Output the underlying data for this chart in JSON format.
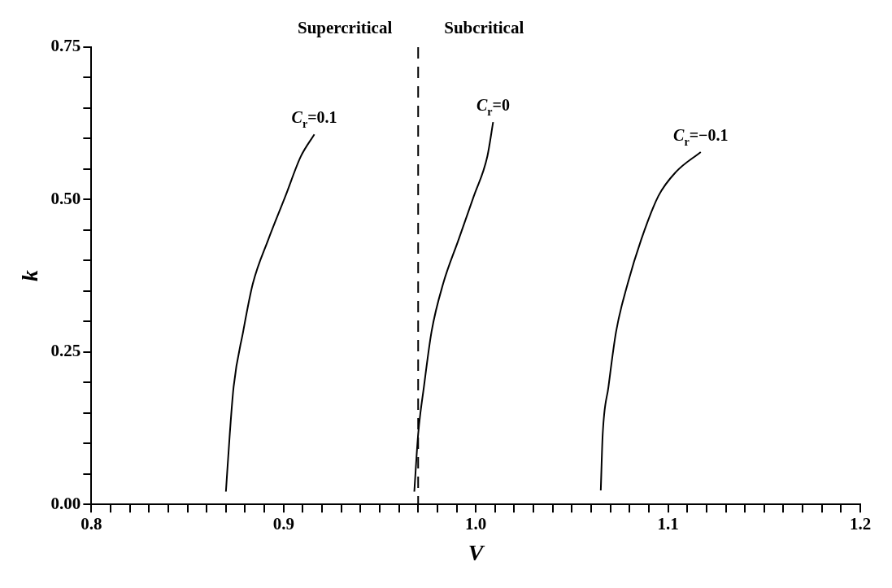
{
  "chart_data": {
    "type": "line",
    "xlabel": "V",
    "ylabel": "k",
    "annotations": [
      "Supercritical",
      "Subcritical"
    ],
    "xlim": [
      0.8,
      1.2
    ],
    "ylim": [
      0,
      0.75
    ],
    "xticks": [
      0.8,
      {
        "value": 0.81,
        "label": null
      },
      {
        "value": 0.82,
        "label": null
      },
      {
        "value": 0.83,
        "label": null
      },
      {
        "value": 0.84,
        "label": null
      },
      {
        "value": 0.85,
        "label": null
      },
      {
        "value": 0.86,
        "label": null
      },
      {
        "value": 0.87,
        "label": null
      },
      {
        "value": 0.88,
        "label": null
      },
      {
        "value": 0.89,
        "label": null
      },
      0.9,
      {
        "value": 0.91,
        "label": null
      },
      {
        "value": 0.92,
        "label": null
      },
      {
        "value": 0.93,
        "label": null
      },
      {
        "value": 0.94,
        "label": null
      },
      {
        "value": 0.95,
        "label": null
      },
      {
        "value": 0.96,
        "label": null
      },
      {
        "value": 0.97,
        "label": null
      },
      {
        "value": 0.98,
        "label": null
      },
      {
        "value": 0.99,
        "label": null
      },
      {
        "value": 1.0,
        "label": "1.0"
      },
      {
        "value": 1.01,
        "label": null
      },
      {
        "value": 1.02,
        "label": null
      },
      {
        "value": 1.03,
        "label": null
      },
      {
        "value": 1.04,
        "label": null
      },
      {
        "value": 1.05,
        "label": null
      },
      {
        "value": 1.06,
        "label": null
      },
      {
        "value": 1.07,
        "label": null
      },
      {
        "value": 1.08,
        "label": null
      },
      {
        "value": 1.09,
        "label": null
      },
      1.1,
      {
        "value": 1.11,
        "label": null
      },
      {
        "value": 1.12,
        "label": null
      },
      {
        "value": 1.13,
        "label": null
      },
      {
        "value": 1.14,
        "label": null
      },
      {
        "value": 1.15,
        "label": null
      },
      {
        "value": 1.16,
        "label": null
      },
      {
        "value": 1.17,
        "label": null
      },
      {
        "value": 1.18,
        "label": null
      },
      {
        "value": 1.19,
        "label": null
      },
      1.2
    ],
    "yticks": [
      {
        "value": 0,
        "label": "0.00"
      },
      {
        "value": 0.05,
        "label": null
      },
      {
        "value": 0.1,
        "label": null
      },
      {
        "value": 0.15,
        "label": null
      },
      {
        "value": 0.2,
        "label": null
      },
      0.25,
      {
        "value": 0.3,
        "label": null
      },
      {
        "value": 0.35,
        "label": null
      },
      {
        "value": 0.4,
        "label": null
      },
      {
        "value": 0.45,
        "label": null
      },
      {
        "value": 0.5,
        "label": "0.50"
      },
      {
        "value": 0.55,
        "label": null
      },
      {
        "value": 0.6,
        "label": null
      },
      {
        "value": 0.65,
        "label": null
      },
      {
        "value": 0.7,
        "label": null
      },
      0.75
    ],
    "grid": false,
    "legend": false,
    "marker": "none",
    "series": [
      {
        "name": "C$_{r}$=0.1",
        "color": "#000000",
        "line_style": "solid",
        "x": [
          0.87,
          0.872,
          0.874,
          0.879,
          0.884,
          0.892,
          0.901,
          0.909,
          0.916
        ],
        "values": [
          0.021,
          0.115,
          0.193,
          0.284,
          0.362,
          0.434,
          0.506,
          0.571,
          0.607
        ]
      },
      {
        "name": "C$_{r}$=0",
        "color": "#000000",
        "line_style": "solid",
        "x": [
          0.968,
          0.97,
          0.973,
          0.977,
          0.983,
          0.991,
          0.999,
          1.006,
          1.009
        ],
        "values": [
          0.021,
          0.115,
          0.193,
          0.284,
          0.362,
          0.434,
          0.506,
          0.571,
          0.627
        ]
      },
      {
        "name": "C$_{r}$=−0.1",
        "color": "#000000",
        "line_style": "solid",
        "x": [
          1.065,
          1.066,
          1.069,
          1.073,
          1.079,
          1.086,
          1.095,
          1.104,
          1.117
        ],
        "values": [
          0.023,
          0.115,
          0.193,
          0.284,
          0.362,
          0.434,
          0.506,
          0.545,
          0.578
        ]
      }
    ],
    "ref_lines": [
      {
        "axis": "x",
        "value": 0.97,
        "color": "#000000",
        "line_style": "dashed"
      }
    ]
  }
}
